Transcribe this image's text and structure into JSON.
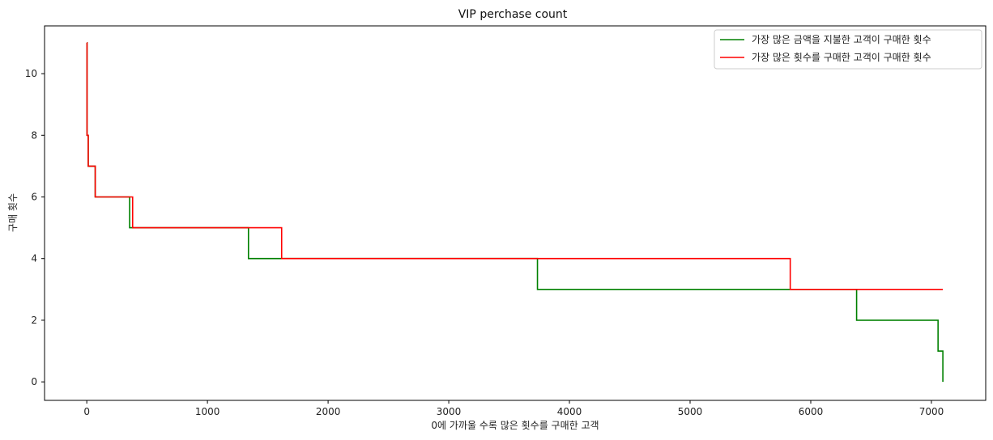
{
  "chart_data": {
    "type": "line",
    "title": "VIP perchase count",
    "xlabel": "0에 가까울 수록 많은 횟수를 구매한 고객",
    "ylabel": "구매 횟수",
    "xlim": [
      -350,
      7450
    ],
    "ylim": [
      -0.6,
      11.55
    ],
    "x_ticks": [
      0,
      1000,
      2000,
      3000,
      4000,
      5000,
      6000,
      7000
    ],
    "y_ticks": [
      0,
      2,
      4,
      6,
      8,
      10
    ],
    "grid": false,
    "legend_position": "top-right",
    "series": [
      {
        "name": "가장 많은 금액을 지불한 고객이 구매한 횟수",
        "color": "#008000",
        "step": true,
        "points": [
          [
            0,
            11
          ],
          [
            2,
            8
          ],
          [
            12,
            7
          ],
          [
            70,
            6
          ],
          [
            355,
            5
          ],
          [
            1340,
            4
          ],
          [
            3735,
            3
          ],
          [
            6380,
            2
          ],
          [
            7055,
            1
          ],
          [
            7095,
            0
          ]
        ],
        "x_end": 7095
      },
      {
        "name": "가장 많은 횟수를 구매한 고객이 구매한 횟수",
        "color": "#ff0000",
        "step": true,
        "points": [
          [
            0,
            11
          ],
          [
            2,
            8
          ],
          [
            12,
            7
          ],
          [
            70,
            6
          ],
          [
            380,
            5
          ],
          [
            1615,
            4
          ],
          [
            5830,
            3
          ]
        ],
        "x_end": 7095
      }
    ]
  }
}
